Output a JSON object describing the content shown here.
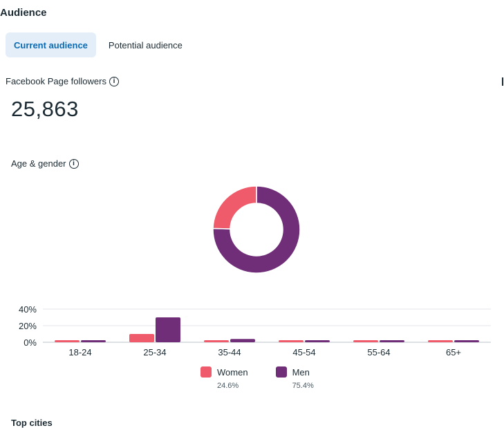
{
  "section": {
    "title": "Audience"
  },
  "tabs": [
    {
      "label": "Current audience",
      "active": true
    },
    {
      "label": "Potential audience",
      "active": false
    }
  ],
  "followers": {
    "label": "Facebook Page followers",
    "value": "25,863"
  },
  "age_gender": {
    "label": "Age & gender"
  },
  "next_section": {
    "title": "Top cities"
  },
  "colors": {
    "women": "#ef5b6b",
    "men": "#6f2e77",
    "grid": "#e4e6eb",
    "accent": "#0a6bb5"
  },
  "chart_data": {
    "type": "bar",
    "title": "Age & gender",
    "categories": [
      "18-24",
      "25-34",
      "35-44",
      "45-54",
      "55-64",
      "65+"
    ],
    "series": [
      {
        "name": "Women",
        "values": [
          1.5,
          10,
          1.5,
          1.5,
          1.5,
          1.5
        ]
      },
      {
        "name": "Men",
        "values": [
          2.5,
          30,
          4,
          1.5,
          1.5,
          1.5
        ]
      }
    ],
    "yticks": [
      "0%",
      "20%",
      "40%"
    ],
    "ylim": [
      0,
      40
    ],
    "legend": [
      {
        "name": "Women",
        "percent": "24.6%"
      },
      {
        "name": "Men",
        "percent": "75.4%"
      }
    ],
    "donut": {
      "Women": 24.6,
      "Men": 75.4
    }
  }
}
